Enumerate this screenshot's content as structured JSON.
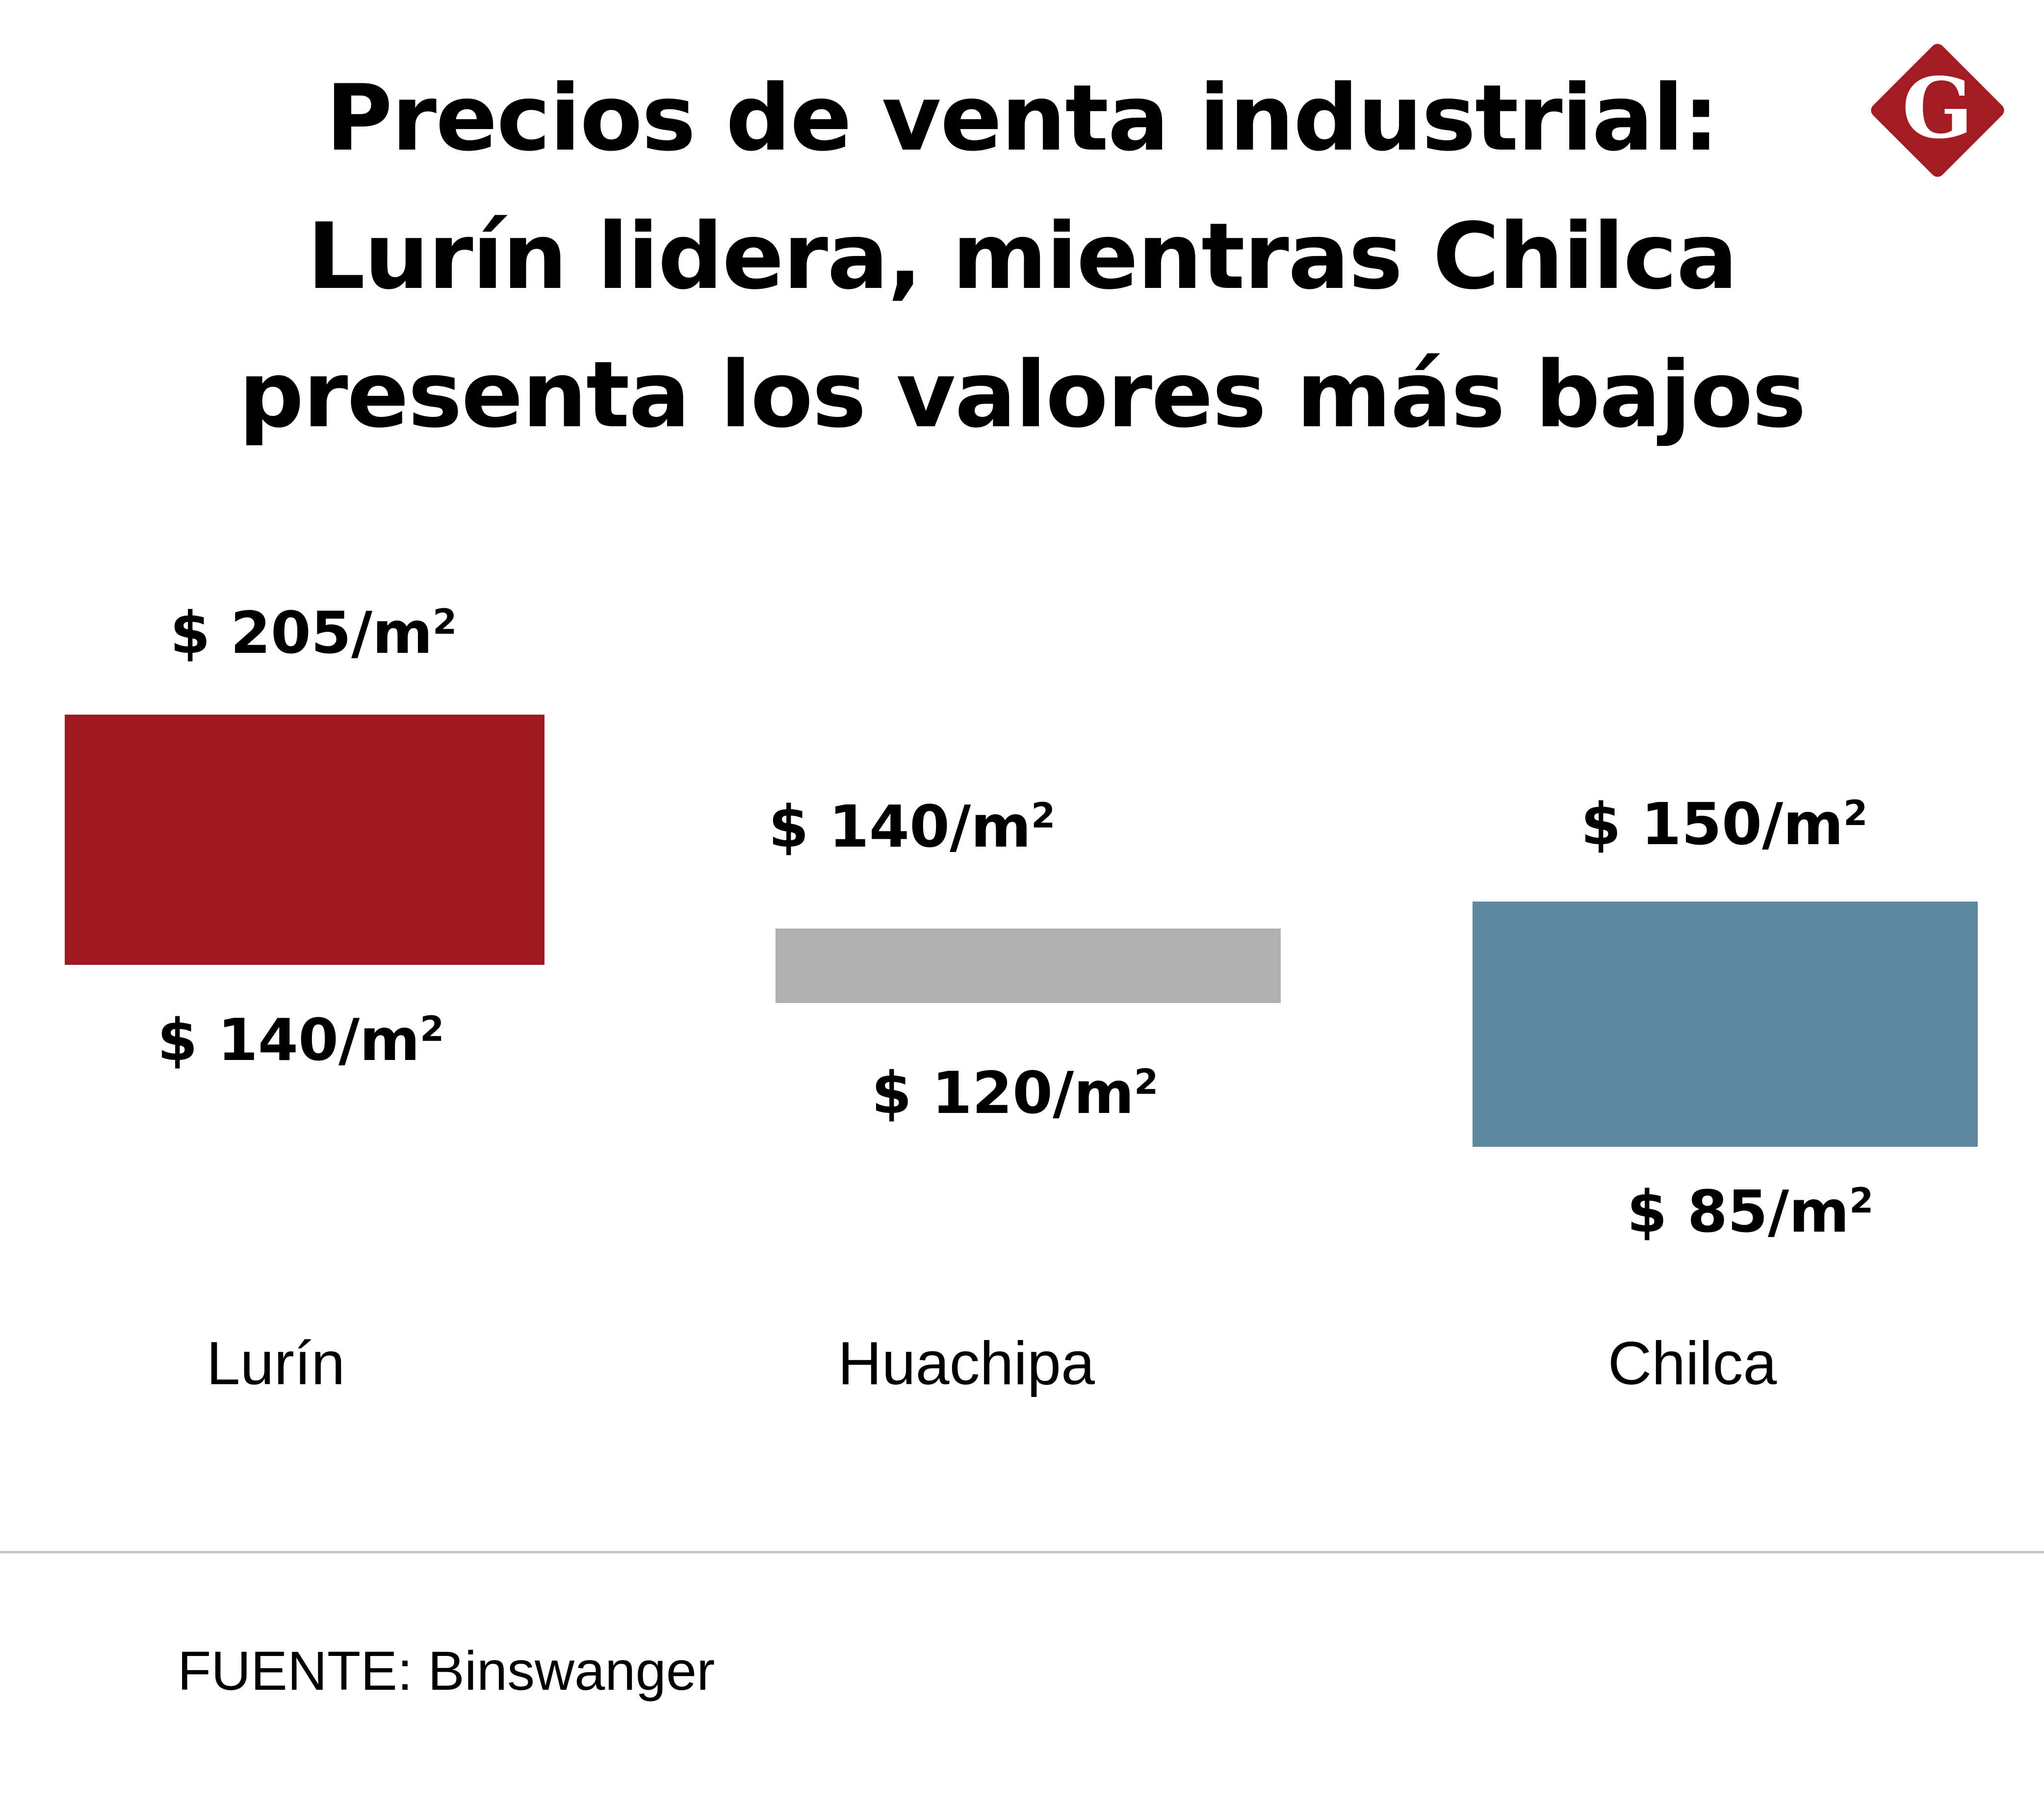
{
  "chart_data": {
    "type": "range-bar",
    "title": [
      "Precios de venta industrial:",
      "Lurín lidera, mientras Chilca",
      "presenta los valores más bajos"
    ],
    "unit": "/m²",
    "categories": [
      "Lurín",
      "Huachipa",
      "Chilca"
    ],
    "ranges": [
      {
        "category": "Lurín",
        "low": 140,
        "high": 205,
        "low_label": "$ 140/m",
        "high_label": "$ 205/m",
        "color": "#9e1a1f"
      },
      {
        "category": "Huachipa",
        "low": 120,
        "high": 140,
        "low_label": "$ 120/m",
        "high_label": "$ 140/m",
        "color": "#b1b1b1"
      },
      {
        "category": "Chilca",
        "low": 85,
        "high": 150,
        "low_label": "$ 85/m",
        "high_label": "$ 150/m",
        "color": "#5f89a1"
      }
    ],
    "grid": false,
    "legend": "none"
  },
  "source": "FUENTE: Binswanger",
  "logo": {
    "letter": "G",
    "color": "#a31c22",
    "icon": "g-diamond-logo"
  }
}
